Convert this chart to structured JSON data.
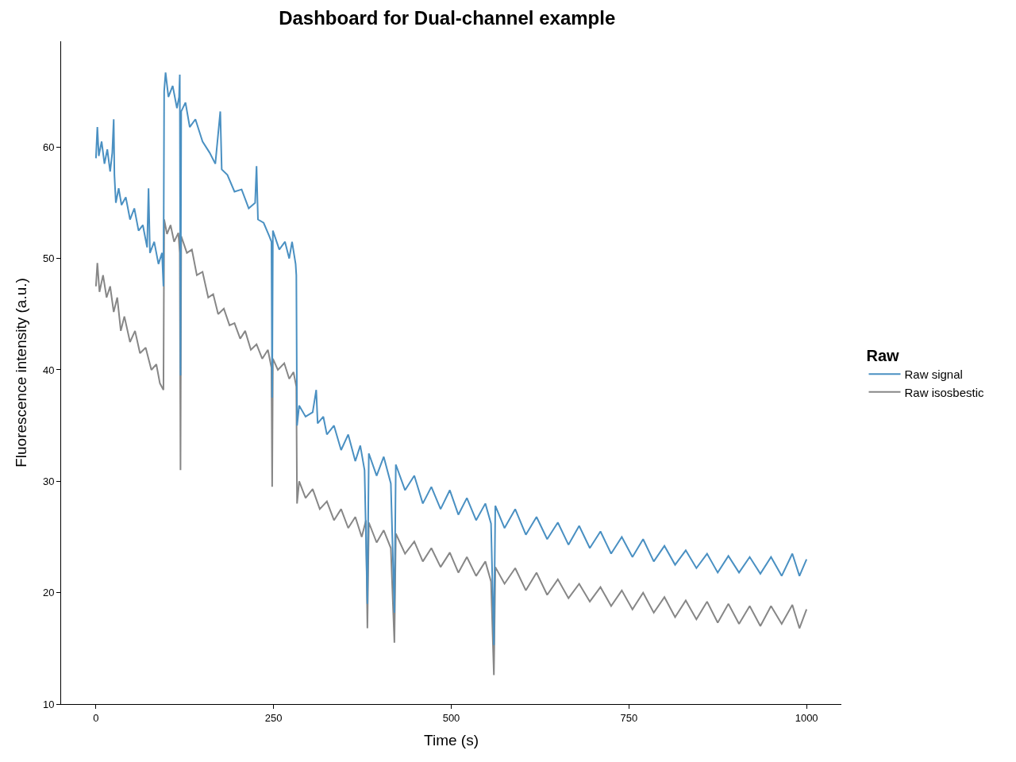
{
  "chart_data": {
    "type": "line",
    "title": "Dashboard for Dual-channel example",
    "xlabel": "Time (s)",
    "ylabel": "Fluorescence intensity (a.u.)",
    "legend_title": "Raw",
    "legend": "right",
    "marker": "none",
    "line_style": "solid",
    "xlim": [
      -49,
      1049
    ],
    "xticks": [
      0,
      250,
      500,
      750,
      1000
    ],
    "ylim": [
      10,
      69.5
    ],
    "yticks": [
      10,
      20,
      30,
      40,
      50,
      60
    ],
    "series": [
      {
        "name": "Raw signal",
        "color": "#4a90c2",
        "x": [
          0,
          2,
          4,
          8,
          12,
          16,
          20,
          23,
          25,
          26,
          28,
          32,
          36,
          42,
          48,
          54,
          60,
          66,
          72,
          74,
          76,
          82,
          88,
          93,
          95,
          96,
          98,
          102,
          108,
          114,
          117,
          118,
          119,
          120,
          126,
          132,
          140,
          150,
          160,
          168,
          175,
          177,
          185,
          195,
          205,
          215,
          224,
          226,
          228,
          236,
          244,
          247,
          248,
          249,
          258,
          266,
          272,
          276,
          281,
          282,
          283,
          286,
          295,
          305,
          310,
          312,
          320,
          325,
          335,
          345,
          355,
          365,
          372,
          378,
          382,
          384,
          395,
          405,
          415,
          420,
          422,
          435,
          448,
          460,
          472,
          485,
          498,
          510,
          522,
          535,
          548,
          556,
          560,
          562,
          575,
          590,
          605,
          620,
          635,
          650,
          665,
          680,
          695,
          710,
          725,
          740,
          755,
          770,
          785,
          800,
          815,
          830,
          845,
          860,
          875,
          890,
          905,
          920,
          935,
          950,
          965,
          980,
          990,
          1000
        ],
        "values": [
          59,
          61.8,
          59.2,
          60.5,
          58.5,
          59.8,
          57.8,
          59.5,
          62.5,
          57.5,
          55,
          56.3,
          54.8,
          55.5,
          53.5,
          54.5,
          52.5,
          53,
          51,
          56.3,
          50.5,
          51.5,
          49.5,
          50.5,
          47.5,
          65,
          66.7,
          64.5,
          65.5,
          63.5,
          64.5,
          66.5,
          39.5,
          63.2,
          64,
          61.8,
          62.5,
          60.5,
          59.5,
          58.5,
          63.2,
          58,
          57.5,
          56,
          56.2,
          54.5,
          55,
          58.3,
          53.5,
          53.2,
          52,
          51.5,
          37.5,
          52.5,
          50.8,
          51.5,
          50,
          51.5,
          49.5,
          48.5,
          35,
          36.8,
          35.8,
          36.2,
          38.2,
          35.2,
          35.8,
          34.2,
          35,
          32.8,
          34.2,
          31.8,
          33.2,
          31,
          19,
          32.5,
          30.5,
          32.2,
          29.8,
          18.2,
          31.5,
          29.2,
          30.5,
          28,
          29.5,
          27.5,
          29.2,
          27,
          28.5,
          26.5,
          28,
          26.2,
          15.3,
          27.8,
          25.8,
          27.5,
          25.2,
          26.8,
          24.8,
          26.3,
          24.3,
          26,
          24,
          25.5,
          23.5,
          25,
          23.2,
          24.8,
          22.8,
          24.2,
          22.5,
          23.8,
          22.2,
          23.5,
          21.8,
          23.3,
          21.8,
          23.2,
          21.7,
          23.2,
          21.5,
          23.5,
          21.5,
          23
        ]
      },
      {
        "name": "Raw isosbestic",
        "color": "#878787",
        "x": [
          0,
          2,
          5,
          10,
          15,
          20,
          25,
          30,
          35,
          40,
          48,
          55,
          62,
          70,
          78,
          85,
          90,
          95,
          96,
          100,
          105,
          110,
          116,
          118,
          119,
          120,
          128,
          135,
          142,
          150,
          158,
          165,
          172,
          180,
          188,
          195,
          203,
          210,
          218,
          226,
          234,
          242,
          247,
          248,
          249,
          256,
          265,
          272,
          278,
          282,
          283,
          286,
          295,
          305,
          315,
          325,
          335,
          345,
          355,
          365,
          374,
          380,
          382,
          384,
          395,
          405,
          415,
          420,
          422,
          435,
          448,
          460,
          472,
          485,
          498,
          510,
          522,
          535,
          548,
          556,
          560,
          562,
          575,
          590,
          605,
          620,
          635,
          650,
          665,
          680,
          695,
          710,
          725,
          740,
          755,
          770,
          785,
          800,
          815,
          830,
          845,
          860,
          875,
          890,
          905,
          920,
          935,
          950,
          965,
          980,
          990,
          1000
        ],
        "values": [
          47.5,
          49.6,
          47,
          48.5,
          46.5,
          47.5,
          45.2,
          46.5,
          43.5,
          44.8,
          42.5,
          43.5,
          41.5,
          42,
          40,
          40.5,
          38.8,
          38.2,
          53.5,
          52.2,
          53,
          51.5,
          52.3,
          50.5,
          31,
          52,
          50.5,
          50.8,
          48.5,
          48.8,
          46.5,
          46.8,
          45,
          45.5,
          44,
          44.2,
          42.8,
          43.5,
          41.8,
          42.3,
          41,
          41.8,
          40.2,
          29.5,
          41,
          40,
          40.6,
          39.2,
          39.8,
          38.5,
          28,
          30,
          28.5,
          29.3,
          27.5,
          28.2,
          26.5,
          27.5,
          25.8,
          26.8,
          25,
          26.5,
          16.8,
          26.3,
          24.5,
          25.6,
          24,
          15.5,
          25.3,
          23.5,
          24.6,
          22.8,
          24,
          22.3,
          23.6,
          21.8,
          23.2,
          21.5,
          22.8,
          21,
          12.6,
          22.3,
          20.8,
          22.2,
          20.2,
          21.8,
          19.8,
          21.2,
          19.5,
          20.8,
          19.2,
          20.5,
          18.8,
          20.2,
          18.5,
          20,
          18.2,
          19.6,
          17.8,
          19.3,
          17.6,
          19.2,
          17.3,
          19,
          17.2,
          18.8,
          17,
          18.8,
          17.2,
          18.9,
          16.8,
          18.5
        ]
      }
    ]
  }
}
